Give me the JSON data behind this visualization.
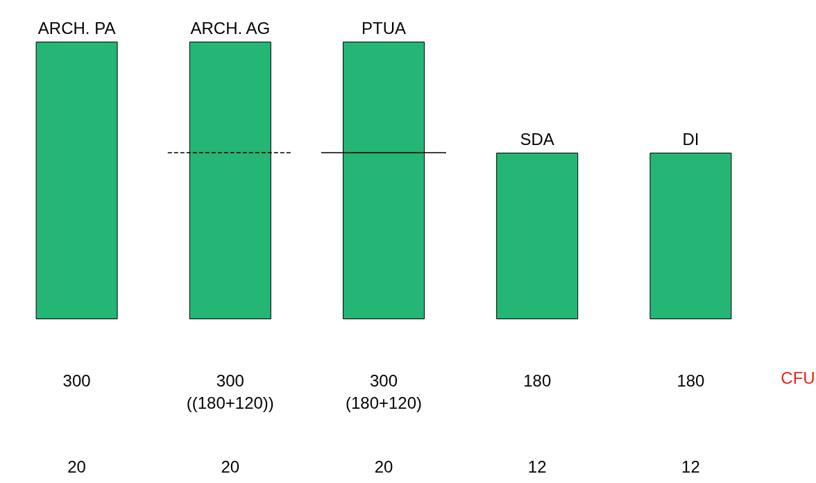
{
  "chart_data": {
    "type": "bar",
    "categories": [
      "ARCH. PA",
      "ARCH. AG",
      "PTUA",
      "SDA",
      "DI"
    ],
    "values": [
      300,
      300,
      300,
      180,
      180
    ],
    "value_labels": [
      "300",
      "300\n((180+120))",
      "300\n(180+120)",
      "180",
      "180"
    ],
    "color": "#25b574",
    "ref_lines": [
      {
        "axis": "y",
        "value": 180,
        "line_style": "dashed",
        "color": "#000000"
      },
      {
        "axis": "y",
        "value": 180,
        "line_style": "solid",
        "color": "#000000"
      }
    ],
    "annotations": [
      "CFU",
      "20",
      "20",
      "20",
      "12",
      "12"
    ]
  }
}
